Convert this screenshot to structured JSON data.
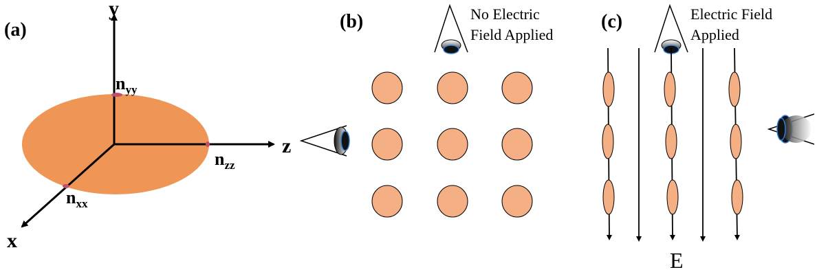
{
  "panels": {
    "a": {
      "label": "(a)",
      "axes": {
        "y": "y",
        "z": "z",
        "x": "x"
      },
      "indices": {
        "nyy": {
          "main": "n",
          "sub": "yy"
        },
        "nzz": {
          "main": "n",
          "sub": "zz"
        },
        "nxx": {
          "main": "n",
          "sub": "xx"
        }
      },
      "ellipsoid_color": "#ef9555"
    },
    "b": {
      "label": "(b)",
      "caption_line1": "No Electric",
      "caption_line2": "Field Applied",
      "particle_color": "#f4b084"
    },
    "c": {
      "label": "(c)",
      "caption_line1": "Electric Field",
      "caption_line2": "Applied",
      "field_label": "E",
      "particle_color": "#f4b084"
    }
  },
  "colors": {
    "line": "#000000",
    "marker": "#c0506a",
    "eye_dark": "#1a1a1a",
    "eye_iris": "#2e7fd6"
  },
  "icons": {
    "eye_side_a": "eye-icon",
    "eye_top_b": "eye-icon",
    "eye_top_c": "eye-icon",
    "eye_side_c": "eye-icon"
  }
}
